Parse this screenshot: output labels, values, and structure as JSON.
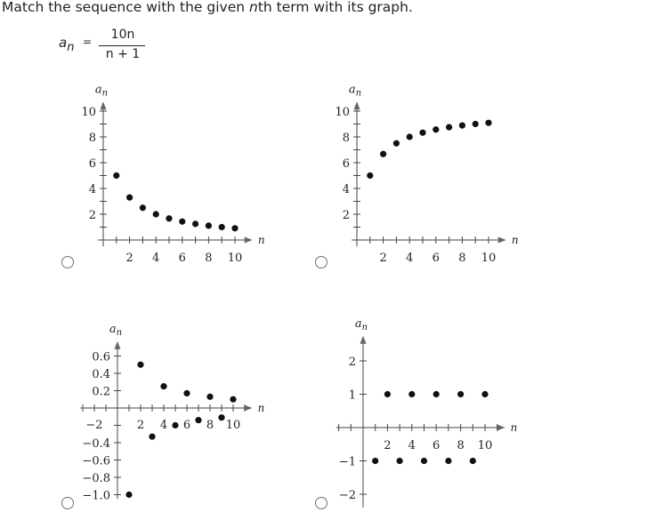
{
  "question": {
    "prefix": "Match the sequence with the given ",
    "italic": "n",
    "suffix": "th term with its graph."
  },
  "formula": {
    "lhs": "a",
    "lhs_sub": "n",
    "eq": "=",
    "numerator": "10n",
    "denominator": "n + 1"
  },
  "icons": {
    "radio": "radio-unselected-icon"
  },
  "chart_data": [
    {
      "type": "scatter",
      "ylabel": "a_n",
      "xlabel": "n",
      "xticks": [
        "2",
        "4",
        "6",
        "8",
        "10"
      ],
      "yticks": [
        "2",
        "4",
        "6",
        "8",
        "10"
      ],
      "xlim": [
        0,
        11
      ],
      "ylim": [
        0,
        10
      ],
      "points": [
        [
          1,
          5
        ],
        [
          2,
          3.3
        ],
        [
          3,
          2.5
        ],
        [
          4,
          2
        ],
        [
          5,
          1.67
        ],
        [
          6,
          1.43
        ],
        [
          7,
          1.25
        ],
        [
          8,
          1.11
        ],
        [
          9,
          1
        ],
        [
          10,
          0.91
        ]
      ]
    },
    {
      "type": "scatter",
      "ylabel": "a_n",
      "xlabel": "n",
      "xticks": [
        "2",
        "4",
        "6",
        "8",
        "10"
      ],
      "yticks": [
        "2",
        "4",
        "6",
        "8",
        "10"
      ],
      "xlim": [
        0,
        11
      ],
      "ylim": [
        0,
        10
      ],
      "points": [
        [
          1,
          5
        ],
        [
          2,
          6.67
        ],
        [
          3,
          7.5
        ],
        [
          4,
          8
        ],
        [
          5,
          8.33
        ],
        [
          6,
          8.57
        ],
        [
          7,
          8.75
        ],
        [
          8,
          8.89
        ],
        [
          9,
          9
        ],
        [
          10,
          9.09
        ]
      ]
    },
    {
      "type": "scatter",
      "ylabel": "a_n",
      "xlabel": "n",
      "xticks": [
        "−2",
        "2",
        "4",
        "6",
        "8",
        "10"
      ],
      "yticks": [
        "0.6",
        "0.4",
        "0.2",
        "−0.4",
        "−0.6",
        "−0.8",
        "−1.0"
      ],
      "xlim": [
        -3,
        11
      ],
      "ylim": [
        -1,
        0.6
      ],
      "points": [
        [
          1,
          -1
        ],
        [
          2,
          0.5
        ],
        [
          3,
          -0.33
        ],
        [
          4,
          0.25
        ],
        [
          5,
          -0.2
        ],
        [
          6,
          0.17
        ],
        [
          7,
          -0.14
        ],
        [
          8,
          0.13
        ],
        [
          9,
          -0.11
        ],
        [
          10,
          0.1
        ]
      ]
    },
    {
      "type": "scatter",
      "ylabel": "a_n",
      "xlabel": "n",
      "xticks": [
        "2",
        "4",
        "6",
        "8",
        "10"
      ],
      "yticks": [
        "2",
        "1",
        "−1",
        "−2"
      ],
      "xlim": [
        0,
        11
      ],
      "ylim": [
        -2,
        2
      ],
      "points": [
        [
          1,
          -1
        ],
        [
          2,
          1
        ],
        [
          3,
          -1
        ],
        [
          4,
          1
        ],
        [
          5,
          -1
        ],
        [
          6,
          1
        ],
        [
          7,
          -1
        ],
        [
          8,
          1
        ],
        [
          9,
          -1
        ],
        [
          10,
          1
        ]
      ]
    }
  ]
}
